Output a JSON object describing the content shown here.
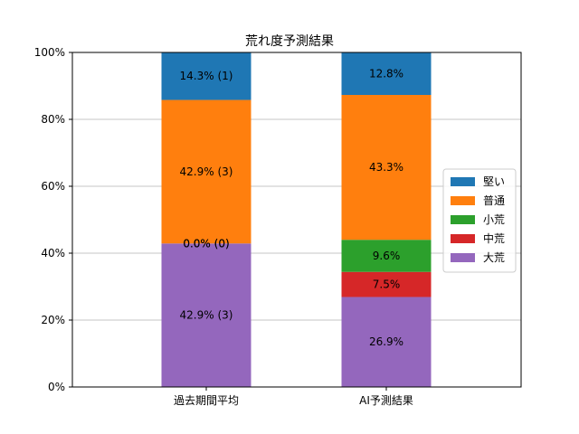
{
  "chart_data": {
    "type": "bar",
    "stacked": true,
    "title": "荒れ度予測結果",
    "categories": [
      "過去期間平均",
      "AI予測結果"
    ],
    "ylim": [
      0,
      100
    ],
    "y_ticks": [
      0,
      20,
      40,
      60,
      80,
      100
    ],
    "y_tick_labels": [
      "0%",
      "20%",
      "40%",
      "60%",
      "80%",
      "100%"
    ],
    "grid": "horizontal",
    "legend_position": "right",
    "series": [
      {
        "name": "大荒",
        "color": "#9467bd",
        "values": [
          42.9,
          26.9
        ],
        "labels": [
          "42.9% (3)",
          "26.9%"
        ]
      },
      {
        "name": "中荒",
        "color": "#d62728",
        "values": [
          0.0,
          7.5
        ],
        "labels": [
          "0.0% (0)",
          "7.5%"
        ]
      },
      {
        "name": "小荒",
        "color": "#2ca02c",
        "values": [
          0.0,
          9.6
        ],
        "labels": [
          "0.0% (0)",
          "9.6%"
        ]
      },
      {
        "name": "普通",
        "color": "#ff7f0e",
        "values": [
          42.9,
          43.3
        ],
        "labels": [
          "42.9% (3)",
          "43.3%"
        ]
      },
      {
        "name": "堅い",
        "color": "#1f77b4",
        "values": [
          14.3,
          12.8
        ],
        "labels": [
          "14.3% (1)",
          "12.8%"
        ]
      }
    ],
    "legend_order": [
      "堅い",
      "普通",
      "小荒",
      "中荒",
      "大荒"
    ]
  }
}
